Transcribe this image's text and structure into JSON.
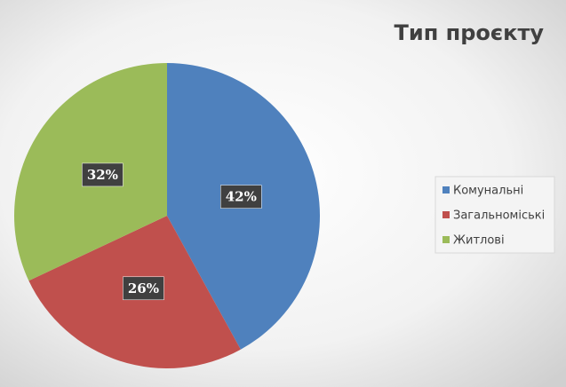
{
  "chart_data": {
    "type": "pie",
    "title": "Тип проєкту",
    "categories": [
      "Комунальні",
      "Загальноміські",
      "Житлові"
    ],
    "values": [
      42,
      26,
      32
    ],
    "value_labels": [
      "42%",
      "26%",
      "32%"
    ],
    "colors": [
      "#4f81bd",
      "#c0504d",
      "#9bbb59"
    ],
    "legend": "right"
  }
}
